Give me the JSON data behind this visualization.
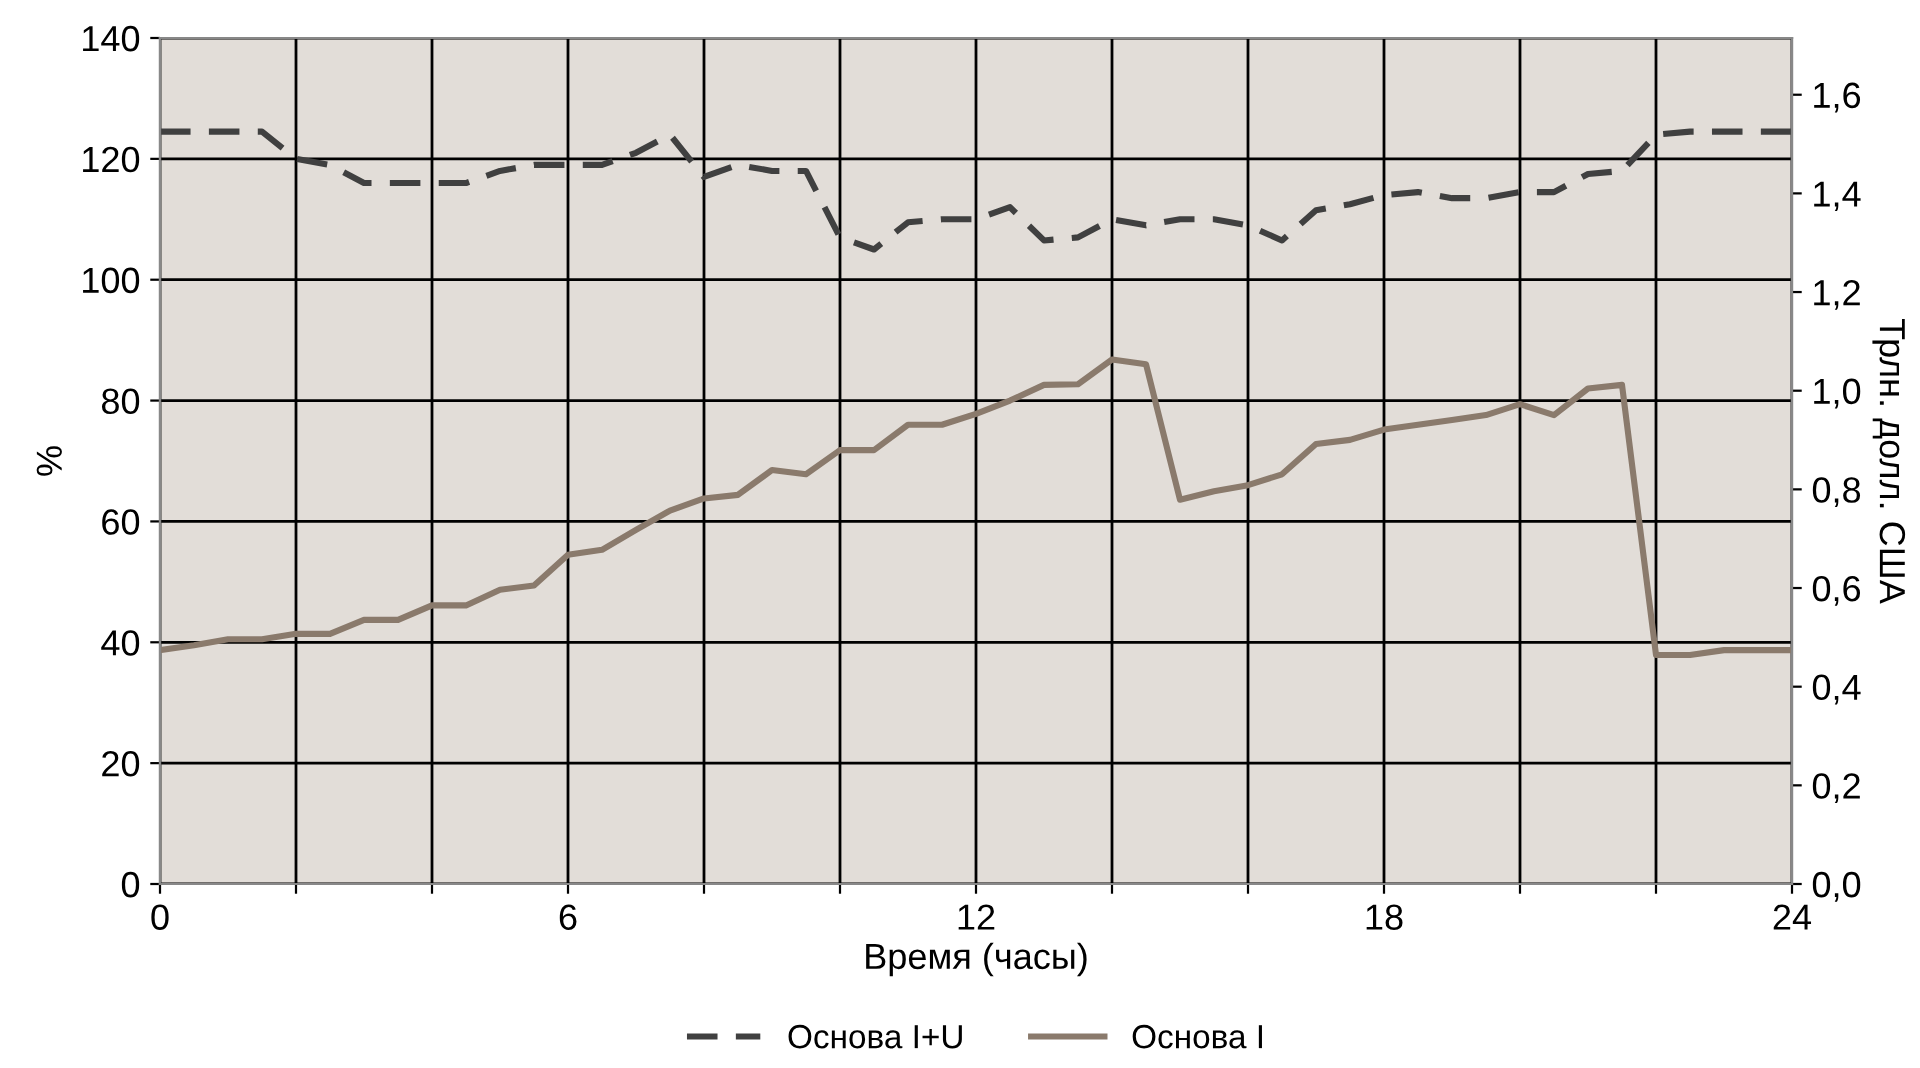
{
  "chart_data": {
    "type": "line",
    "xlabel": "Время (часы)",
    "ylabel": "%",
    "y2label": "Трлн. долл. США",
    "x": [
      0,
      0.5,
      1,
      1.5,
      2,
      2.5,
      3,
      3.5,
      4,
      4.5,
      5,
      5.5,
      6,
      6.5,
      7,
      7.5,
      8,
      8.5,
      9,
      9.5,
      10,
      10.5,
      11,
      11.5,
      12,
      12.5,
      13,
      13.5,
      14,
      14.5,
      15,
      15.5,
      16,
      16.5,
      17,
      17.5,
      18,
      18.5,
      19,
      19.5,
      20,
      20.5,
      21,
      21.5,
      22,
      22.5,
      23,
      23.5,
      24
    ],
    "series": [
      {
        "name": "Основа I+U",
        "color": "#404040",
        "line_style": "dashed",
        "values": [
          124.5,
          124.5,
          124.5,
          124.5,
          120,
          119,
          116,
          116,
          116,
          116,
          118,
          119,
          119,
          119,
          121,
          124,
          117,
          119,
          118,
          118,
          107,
          105,
          109.5,
          110,
          110,
          112,
          106.5,
          107,
          110,
          109,
          110,
          110,
          109,
          106.5,
          111.5,
          112.5,
          114,
          114.5,
          113.5,
          113.5,
          114.5,
          114.5,
          117.5,
          118,
          124,
          124.5,
          124.5,
          124.5,
          124.5
        ]
      },
      {
        "name": "Основа I",
        "color": "#8a7a6c",
        "line_style": "solid",
        "values": [
          38.7,
          39.5,
          40.5,
          40.5,
          41.4,
          41.4,
          43.7,
          43.7,
          46.1,
          46.1,
          48.7,
          49.4,
          54.5,
          55.3,
          58.6,
          61.8,
          63.8,
          64.4,
          68.5,
          67.8,
          71.8,
          71.8,
          76,
          76,
          77.8,
          80,
          82.6,
          82.7,
          86.8,
          86,
          63.6,
          65,
          66,
          67.8,
          72.8,
          73.5,
          75.2,
          76,
          76.8,
          77.6,
          79.4,
          77.6,
          82,
          82.6,
          37.9,
          37.9,
          38.7,
          38.7,
          38.7
        ]
      }
    ],
    "xlim": [
      0,
      24
    ],
    "xticks": [
      0,
      {
        "value": 2,
        "label": null
      },
      {
        "value": 4,
        "label": null
      },
      6,
      {
        "value": 8,
        "label": null
      },
      {
        "value": 10,
        "label": null
      },
      12,
      {
        "value": 14,
        "label": null
      },
      {
        "value": 16,
        "label": null
      },
      18,
      {
        "value": 20,
        "label": null
      },
      {
        "value": 22,
        "label": null
      },
      24
    ],
    "ylim": [
      0,
      140
    ],
    "yticks": [
      0,
      20,
      40,
      60,
      80,
      100,
      120,
      140
    ],
    "y2lim": [
      0,
      1.715
    ],
    "y2ticks": [
      {
        "value": 0,
        "label": "0,0"
      },
      {
        "value": 0.2,
        "label": "0,2"
      },
      {
        "value": 0.4,
        "label": "0,4"
      },
      {
        "value": 0.6,
        "label": "0,6"
      },
      {
        "value": 0.8,
        "label": "0,8"
      },
      {
        "value": 1.0,
        "label": "1,0"
      },
      {
        "value": 1.2,
        "label": "1,2"
      },
      {
        "value": 1.4,
        "label": "1,4"
      },
      {
        "value": 1.6,
        "label": "1,6"
      }
    ],
    "grid": true,
    "legend": "bottom"
  }
}
